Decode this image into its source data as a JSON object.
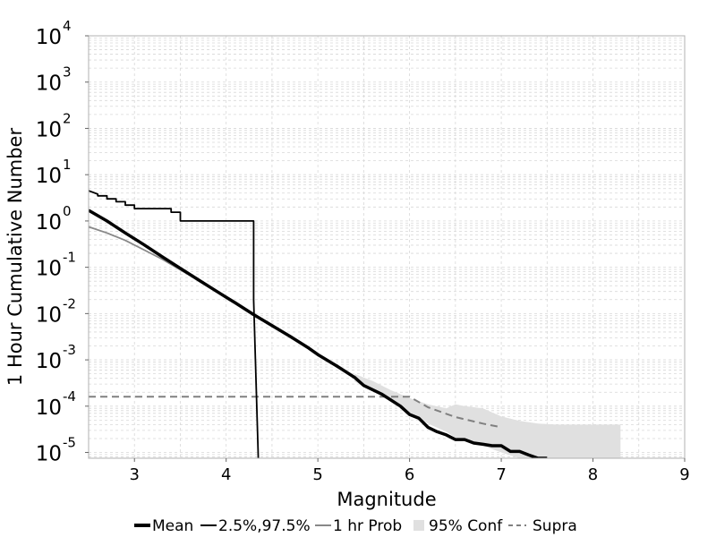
{
  "chart_data": {
    "type": "line",
    "title": "",
    "xlabel": "Magnitude",
    "ylabel": "1 Hour Cumulative Number",
    "xlim": [
      2.5,
      9
    ],
    "ylim": [
      7.5e-06,
      10000
    ],
    "yscale": "log",
    "x_ticks": [
      3,
      4,
      5,
      6,
      7,
      8,
      9
    ],
    "x_tick_labels": [
      "3",
      "4",
      "5",
      "6",
      "7",
      "8",
      "9"
    ],
    "y_ticks": [
      1e-05,
      0.0001,
      0.001,
      0.01,
      0.1,
      1,
      10,
      100,
      1000,
      10000
    ],
    "y_tick_labels": [
      {
        "base": "10",
        "exp": "-5"
      },
      {
        "base": "10",
        "exp": "-4"
      },
      {
        "base": "10",
        "exp": "-3"
      },
      {
        "base": "10",
        "exp": "-2"
      },
      {
        "base": "10",
        "exp": "-1"
      },
      {
        "base": "10",
        "exp": "0"
      },
      {
        "base": "10",
        "exp": "1"
      },
      {
        "base": "10",
        "exp": "2"
      },
      {
        "base": "10",
        "exp": "3"
      },
      {
        "base": "10",
        "exp": "4"
      }
    ],
    "grid": true,
    "legend_position": "bottom",
    "legend": [
      {
        "label": "Mean",
        "style": "thick-solid",
        "color": "#000000"
      },
      {
        "label": "2.5%,97.5%",
        "style": "solid",
        "color": "#000000"
      },
      {
        "label": "1 hr Prob",
        "style": "solid",
        "color": "#888888"
      },
      {
        "label": "95% Conf",
        "style": "area",
        "color": "#e0e0e0"
      },
      {
        "label": "Supra",
        "style": "dashed",
        "color": "#808080"
      }
    ],
    "series": [
      {
        "name": "Mean",
        "color": "#000000",
        "style": "thick-solid",
        "x": [
          2.5,
          2.7,
          2.9,
          3.1,
          3.3,
          3.5,
          3.7,
          3.9,
          4.1,
          4.3,
          4.5,
          4.7,
          4.9,
          5.0,
          5.2,
          5.4,
          5.5,
          5.7,
          5.9,
          6.0,
          6.1,
          6.2,
          6.3,
          6.4,
          6.5,
          6.6,
          6.7,
          6.8,
          6.9,
          7.0,
          7.1,
          7.2,
          7.3,
          7.4,
          7.5
        ],
        "y": [
          1.7,
          1.0,
          0.55,
          0.31,
          0.17,
          0.095,
          0.053,
          0.03,
          0.017,
          0.0095,
          0.0055,
          0.0032,
          0.0018,
          0.0013,
          0.00075,
          0.00042,
          0.00028,
          0.00018,
          0.0001,
          6.6e-05,
          5.5e-05,
          3.5e-05,
          2.8e-05,
          2.4e-05,
          1.9e-05,
          1.9e-05,
          1.6e-05,
          1.5e-05,
          1.4e-05,
          1.4e-05,
          1.05e-05,
          1.05e-05,
          8.8e-06,
          7.5e-06,
          7.5e-06
        ]
      },
      {
        "name": "2.5%,97.5%",
        "color": "#000000",
        "style": "solid",
        "x": [
          2.5,
          2.6,
          2.6,
          2.7,
          2.7,
          2.8,
          2.8,
          2.9,
          2.9,
          3.0,
          3.0,
          3.4,
          3.4,
          3.5,
          3.5,
          4.3,
          4.3,
          4.35
        ],
        "y": [
          4.5,
          3.8,
          3.5,
          3.5,
          3.0,
          3.0,
          2.6,
          2.6,
          2.2,
          2.2,
          1.85,
          1.85,
          1.55,
          1.55,
          1.0,
          1.0,
          0.02,
          7.5e-06
        ]
      },
      {
        "name": "1 hr Prob",
        "color": "#888888",
        "style": "solid",
        "x": [
          2.5,
          2.7,
          2.9,
          3.1,
          3.3,
          3.5,
          3.7,
          3.9,
          4.1,
          4.3
        ],
        "y": [
          0.75,
          0.55,
          0.38,
          0.24,
          0.15,
          0.088,
          0.052,
          0.03,
          0.017,
          0.0095
        ]
      },
      {
        "name": "95% Conf",
        "color": "#e0e0e0",
        "style": "area",
        "x": [
          5.4,
          5.6,
          5.8,
          6.0,
          6.2,
          6.4,
          6.5,
          6.6,
          6.8,
          7.0,
          7.2,
          7.4,
          7.6,
          8.0,
          8.3
        ],
        "y_upper": [
          0.0005,
          0.00035,
          0.00022,
          0.00015,
          0.00011,
          9e-05,
          0.00011,
          0.0001,
          9e-05,
          6e-05,
          4.8e-05,
          4.2e-05,
          4e-05,
          4e-05,
          4e-05
        ],
        "y_lower": [
          0.00034,
          0.00022,
          0.00013,
          7e-05,
          4.2e-05,
          2.8e-05,
          2.1e-05,
          1.8e-05,
          1.4e-05,
          1e-05,
          7.5e-06,
          7.5e-06,
          7.5e-06,
          7.5e-06,
          7.5e-06
        ]
      },
      {
        "name": "Supra",
        "color": "#808080",
        "style": "dashed",
        "x": [
          2.5,
          6.0,
          6.2,
          6.5,
          6.8,
          7.0
        ],
        "y": [
          0.00016,
          0.00016,
          9.5e-05,
          5.8e-05,
          4.2e-05,
          3.5e-05
        ]
      }
    ]
  }
}
